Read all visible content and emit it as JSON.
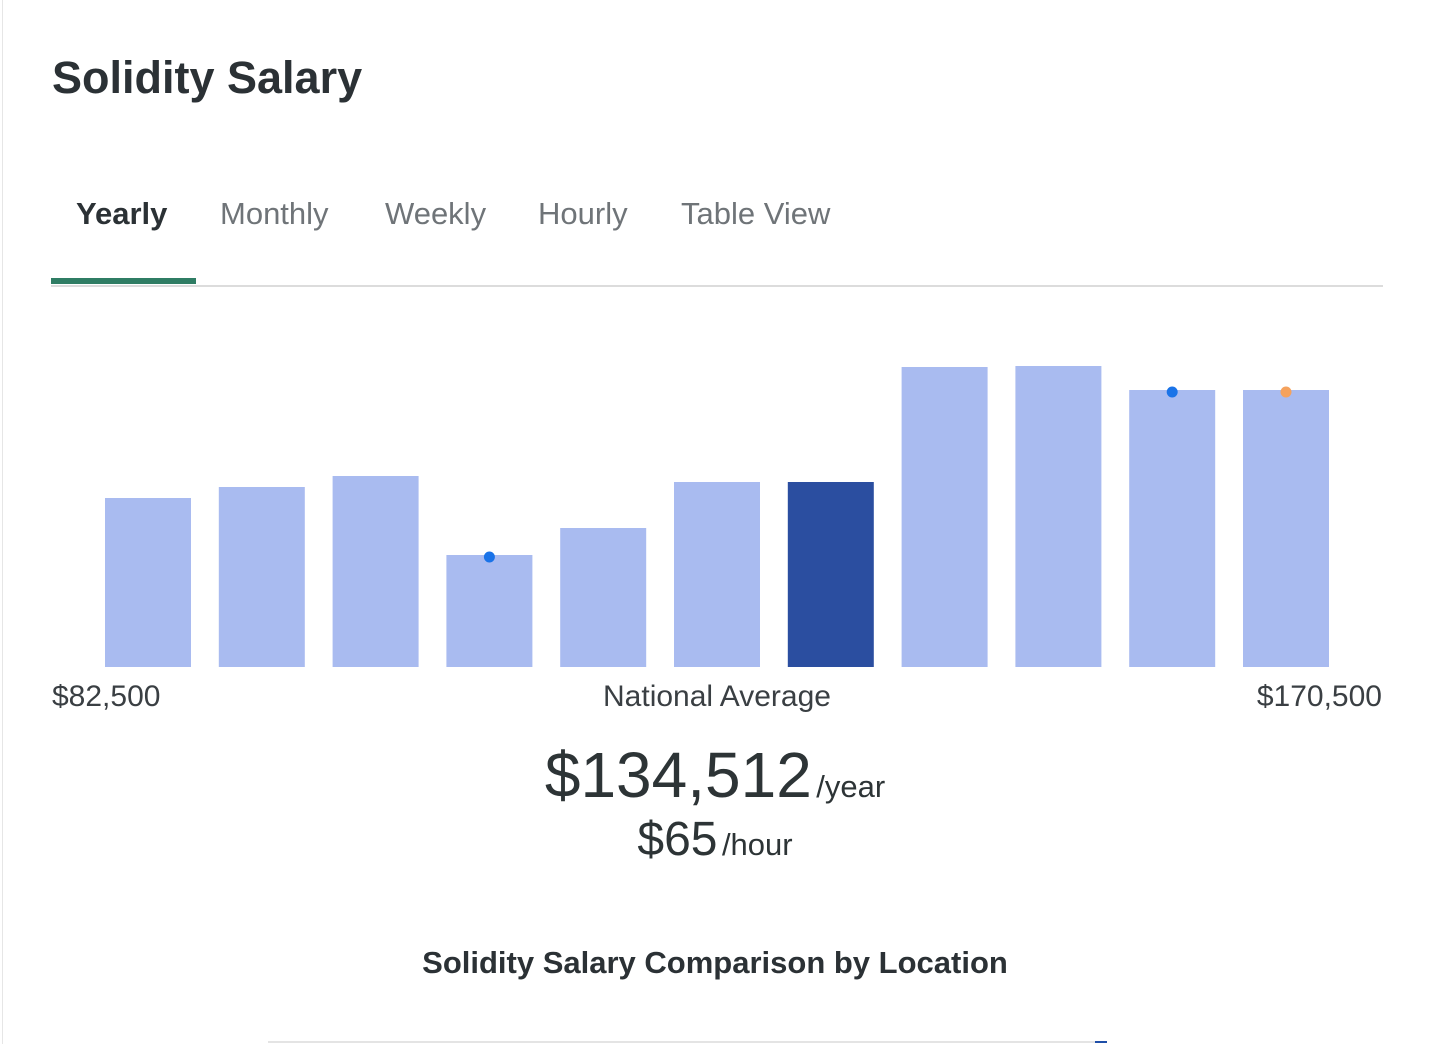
{
  "header": {
    "title": "Solidity Salary"
  },
  "tabs": [
    "Yearly",
    "Monthly",
    "Weekly",
    "Hourly",
    "Table View"
  ],
  "chart_data": {
    "type": "bar",
    "values": [
      169,
      180,
      191,
      112,
      139,
      185,
      185,
      300,
      301,
      277,
      277
    ],
    "colors": [
      "#a9bbf0",
      "#a9bbf0",
      "#a9bbf0",
      "#a9bbf0",
      "#a9bbf0",
      "#a9bbf0",
      "#2b4ea0",
      "#a9bbf0",
      "#a9bbf0",
      "#a9bbf0",
      "#a9bbf0"
    ],
    "dots": [
      null,
      null,
      null,
      "#1a73e8",
      null,
      null,
      null,
      null,
      null,
      "#1a73e8",
      "#f5a25d"
    ],
    "min_label": "$82,500",
    "center_label": "National Average",
    "max_label": "$170,500"
  },
  "summary": {
    "yearly": "$134,512",
    "yearly_unit": "/year",
    "hourly": "$65",
    "hourly_unit": "/hour"
  },
  "section_title": "Solidity Salary Comparison by Location"
}
